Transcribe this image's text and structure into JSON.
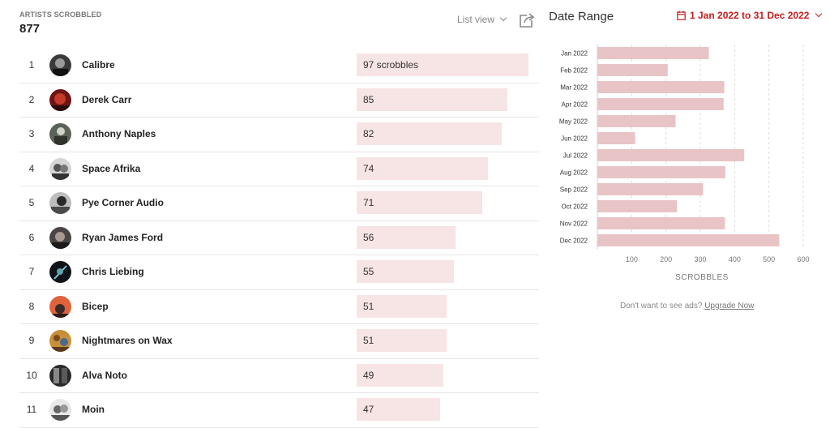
{
  "summary": {
    "label": "ARTISTS SCROBBLED",
    "count": "877"
  },
  "view_toggle": {
    "label": "List view"
  },
  "icons": {
    "share": "share-icon",
    "calendar": "calendar-icon"
  },
  "colors": {
    "accent": "#c21d1d",
    "bar_list": "#f7e4e4",
    "bar_chart": "#e8c4c6"
  },
  "artists": [
    {
      "rank": "1",
      "name": "Calibre",
      "scrobbles": 97,
      "label": "97 scrobbles"
    },
    {
      "rank": "2",
      "name": "Derek Carr",
      "scrobbles": 85,
      "label": "85"
    },
    {
      "rank": "3",
      "name": "Anthony Naples",
      "scrobbles": 82,
      "label": "82"
    },
    {
      "rank": "4",
      "name": "Space Afrika",
      "scrobbles": 74,
      "label": "74"
    },
    {
      "rank": "5",
      "name": "Pye Corner Audio",
      "scrobbles": 71,
      "label": "71"
    },
    {
      "rank": "6",
      "name": "Ryan James Ford",
      "scrobbles": 56,
      "label": "56"
    },
    {
      "rank": "7",
      "name": "Chris Liebing",
      "scrobbles": 55,
      "label": "55"
    },
    {
      "rank": "8",
      "name": "Bicep",
      "scrobbles": 51,
      "label": "51"
    },
    {
      "rank": "9",
      "name": "Nightmares on Wax",
      "scrobbles": 51,
      "label": "51"
    },
    {
      "rank": "10",
      "name": "Alva Noto",
      "scrobbles": 49,
      "label": "49"
    },
    {
      "rank": "11",
      "name": "Moin",
      "scrobbles": 47,
      "label": "47"
    }
  ],
  "date_range": {
    "title": "Date Range",
    "value": "1 Jan 2022 to 31 Dec 2022"
  },
  "chart_data": {
    "type": "bar",
    "orientation": "horizontal",
    "categories": [
      "Jan 2022",
      "Feb 2022",
      "Mar 2022",
      "Apr 2022",
      "May 2022",
      "Jun 2022",
      "Jul 2022",
      "Aug 2022",
      "Sep 2022",
      "Oct 2022",
      "Nov 2022",
      "Dec 2022"
    ],
    "values": [
      325,
      205,
      370,
      368,
      228,
      110,
      428,
      373,
      308,
      232,
      372,
      530
    ],
    "xlabel": "SCROBBLES",
    "xticks": [
      100,
      200,
      300,
      400,
      500,
      600
    ],
    "xlim": [
      0,
      600
    ],
    "grid": true
  },
  "ads": {
    "text": "Don't want to see ads?",
    "link": "Upgrade Now"
  }
}
